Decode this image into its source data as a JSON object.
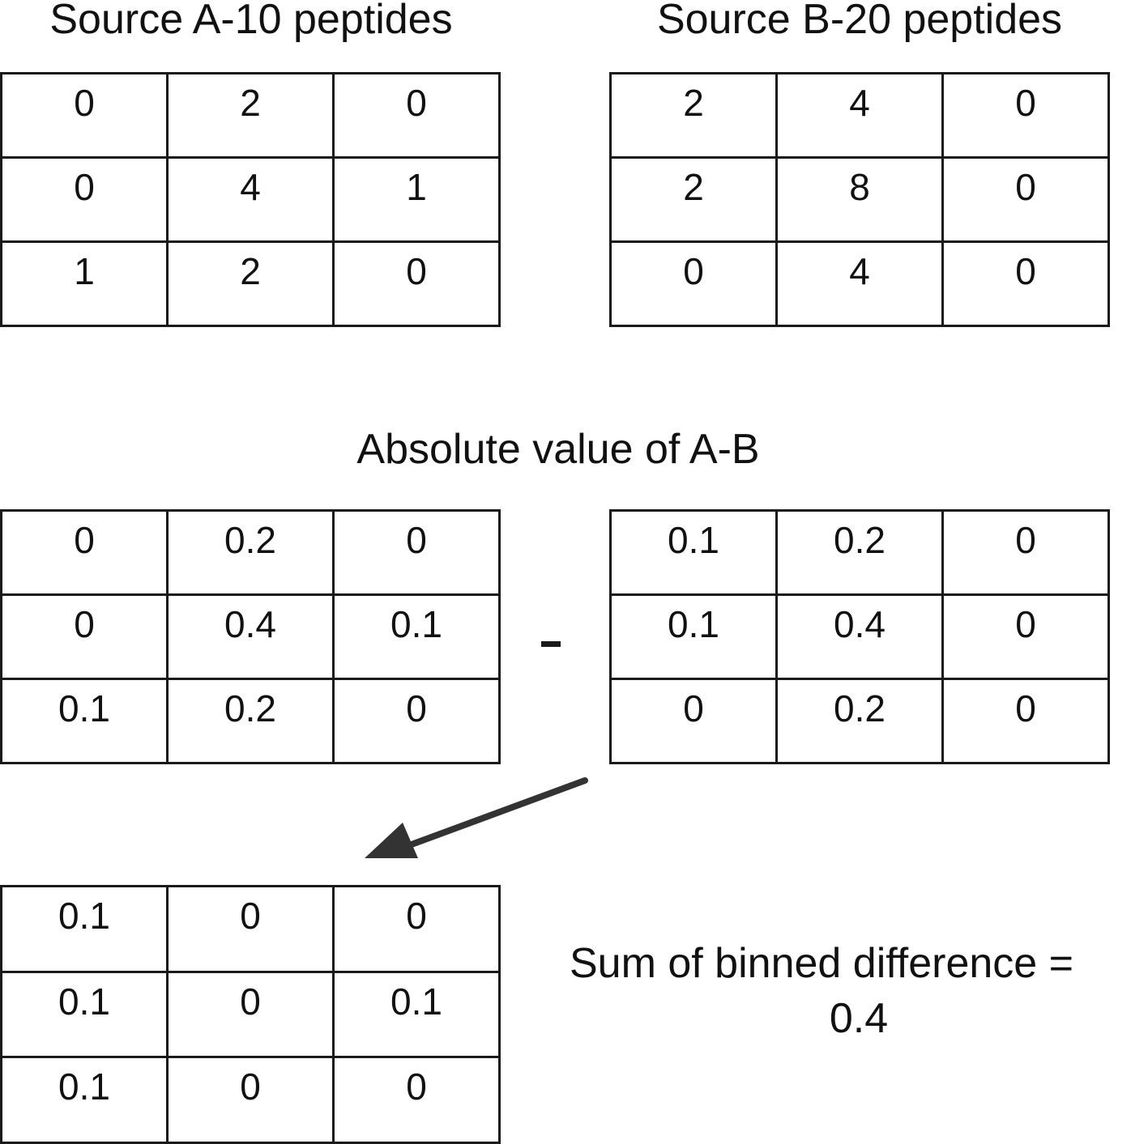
{
  "title_a": "Source A-10 peptides",
  "title_b": "Source B-20 peptides",
  "title_abs": "Absolute value of A-B",
  "sum_line1": "Sum of binned difference =",
  "sum_line2": "0.4",
  "minus_sign": "-",
  "grid_a": [
    [
      "0",
      "2",
      "0"
    ],
    [
      "0",
      "4",
      "1"
    ],
    [
      "1",
      "2",
      "0"
    ]
  ],
  "grid_b": [
    [
      "2",
      "4",
      "0"
    ],
    [
      "2",
      "8",
      "0"
    ],
    [
      "0",
      "4",
      "0"
    ]
  ],
  "grid_a_norm": [
    [
      "0",
      "0.2",
      "0"
    ],
    [
      "0",
      "0.4",
      "0.1"
    ],
    [
      "0.1",
      "0.2",
      "0"
    ]
  ],
  "grid_b_norm": [
    [
      "0.1",
      "0.2",
      "0"
    ],
    [
      "0.1",
      "0.4",
      "0"
    ],
    [
      "0",
      "0.2",
      "0"
    ]
  ],
  "grid_diff": [
    [
      "0.1",
      "0",
      "0"
    ],
    [
      "0.1",
      "0",
      "0.1"
    ],
    [
      "0.1",
      "0",
      "0"
    ]
  ],
  "colors": {
    "stroke": "#1a1a1a",
    "arrow": "#333333",
    "text": "#111111"
  }
}
